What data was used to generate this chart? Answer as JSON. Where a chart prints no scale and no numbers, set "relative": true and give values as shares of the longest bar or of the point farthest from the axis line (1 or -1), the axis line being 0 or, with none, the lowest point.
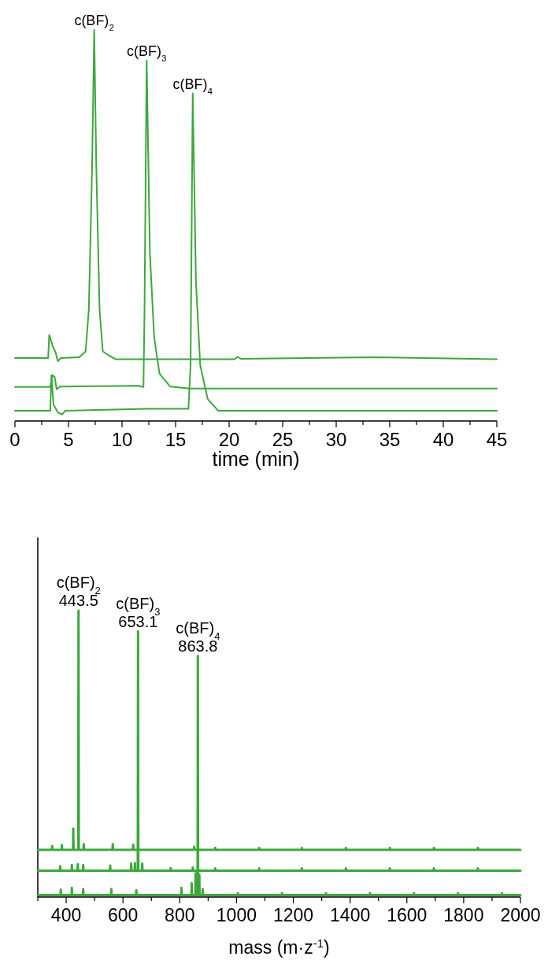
{
  "chart_data": [
    {
      "type": "line",
      "relative": true,
      "xlabel": "time (min)",
      "xlim": [
        0,
        45
      ],
      "xticks": [
        0,
        {
          "value": 2.5,
          "label": null
        },
        5,
        {
          "value": 7.5,
          "label": null
        },
        10,
        {
          "value": 12.5,
          "label": null
        },
        15,
        {
          "value": 17.5,
          "label": null
        },
        20,
        {
          "value": 22.5,
          "label": null
        },
        25,
        {
          "value": 27.5,
          "label": null
        },
        30,
        {
          "value": 32.5,
          "label": null
        },
        35,
        {
          "value": 37.5,
          "label": null
        },
        40,
        {
          "value": 42.5,
          "label": null
        },
        45
      ],
      "tick_labels": "x",
      "grid": false,
      "marker": "none",
      "line_style": "solid",
      "series": [
        {
          "color": "#3ca83c",
          "x": [
            0,
            3.1,
            3.2,
            3.5,
            3.8,
            4.0,
            4.3,
            6.0,
            6.6,
            6.9,
            7.2,
            7.4,
            7.6,
            7.9,
            8.2,
            8.8,
            9.4,
            12,
            20.5,
            20.8,
            21.1,
            33.5,
            45
          ],
          "values": [
            0.161,
            0.161,
            0.22,
            0.193,
            0.175,
            0.153,
            0.161,
            0.163,
            0.178,
            0.286,
            0.645,
            1.0,
            0.645,
            0.286,
            0.178,
            0.167,
            0.158,
            0.158,
            0.158,
            0.164,
            0.159,
            0.163,
            0.158
          ]
        },
        {
          "color": "#3ca83c",
          "x": [
            0,
            3.3,
            3.5,
            3.7,
            3.9,
            4.2,
            11.5,
            12.0,
            12.1,
            12.3,
            12.6,
            13.0,
            13.5,
            14.5,
            16.3,
            17.5,
            45
          ],
          "values": [
            0.087,
            0.087,
            0.117,
            0.113,
            0.081,
            0.088,
            0.09,
            0.087,
            0.286,
            0.922,
            0.43,
            0.214,
            0.121,
            0.088,
            0.083,
            0.083,
            0.083
          ]
        },
        {
          "color": "#3ca83c",
          "x": [
            0,
            3.3,
            3.4,
            3.6,
            4.0,
            4.4,
            4.7,
            12.3,
            15.4,
            16.2,
            16.4,
            16.6,
            16.9,
            17.3,
            18.0,
            19.0,
            45
          ],
          "values": [
            0.026,
            0.026,
            0.117,
            0.042,
            0.022,
            0.017,
            0.026,
            0.031,
            0.031,
            0.031,
            0.143,
            0.838,
            0.358,
            0.143,
            0.056,
            0.026,
            0.026
          ]
        }
      ],
      "annotations": [
        {
          "text": "c(BF)$_{2}$",
          "x": 7.4,
          "y": 1.0
        },
        {
          "text": "c(BF)$_{3}$",
          "x": 12.3,
          "y": 0.922
        },
        {
          "text": "c(BF)$_{4}$",
          "x": 16.6,
          "y": 0.838
        }
      ]
    },
    {
      "type": "line",
      "relative": true,
      "xlabel": "mass (m·z$^{-1}$)",
      "xlim": [
        300,
        2000
      ],
      "xticks": [
        {
          "value": 300,
          "label": null
        },
        400,
        {
          "value": 500,
          "label": null
        },
        600,
        {
          "value": 700,
          "label": null
        },
        800,
        {
          "value": 900,
          "label": null
        },
        1000,
        {
          "value": 1100,
          "label": null
        },
        1200,
        {
          "value": 1300,
          "label": null
        },
        1400,
        {
          "value": 1500,
          "label": null
        },
        1600,
        {
          "value": 1700,
          "label": null
        },
        1800,
        {
          "value": 1900,
          "label": null
        },
        2000
      ],
      "tick_labels": "x",
      "grid": false,
      "marker": "none",
      "line_style": "solid",
      "series": [
        {
          "color": "#3ca83c",
          "x": [
            300,
            350,
            351,
            352,
            384,
            385,
            386,
            424,
            425,
            426,
            442.5,
            443.5,
            444.5,
            461,
            462,
            463,
            563,
            564,
            565,
            635,
            636,
            637,
            850,
            851,
            852,
            924,
            925,
            926,
            1079,
            1080,
            1081,
            1229,
            1230,
            1231,
            1384,
            1385,
            1386,
            1539,
            1540,
            1541,
            1694,
            1695,
            1696,
            1849,
            1850,
            1851,
            2000
          ],
          "values": [
            0.165,
            0.165,
            0.178,
            0.165,
            0.165,
            0.182,
            0.165,
            0.165,
            0.239,
            0.165,
            0.165,
            1.0,
            0.165,
            0.165,
            0.185,
            0.165,
            0.165,
            0.185,
            0.165,
            0.165,
            0.183,
            0.165,
            0.165,
            0.176,
            0.165,
            0.165,
            0.172,
            0.165,
            0.165,
            0.172,
            0.165,
            0.165,
            0.172,
            0.165,
            0.165,
            0.172,
            0.165,
            0.165,
            0.172,
            0.165,
            0.165,
            0.172,
            0.165,
            0.165,
            0.172,
            0.165,
            0.165
          ]
        },
        {
          "color": "#3ca83c",
          "x": [
            300,
            378,
            379,
            380,
            419,
            420,
            421,
            440,
            441,
            442,
            459,
            460,
            461,
            554,
            555,
            556,
            628,
            629,
            630,
            641,
            642,
            643,
            652.1,
            653.1,
            654.1,
            667,
            668,
            669,
            767,
            768,
            769,
            845,
            846,
            847,
            924,
            925,
            926,
            1079,
            1080,
            1081,
            1229,
            1230,
            1231,
            1384,
            1385,
            1386,
            1539,
            1540,
            1541,
            1694,
            1695,
            1696,
            1849,
            1850,
            1851,
            2000
          ],
          "values": [
            0.092,
            0.092,
            0.108,
            0.092,
            0.092,
            0.112,
            0.092,
            0.092,
            0.115,
            0.092,
            0.092,
            0.112,
            0.092,
            0.092,
            0.11,
            0.092,
            0.092,
            0.117,
            0.092,
            0.092,
            0.119,
            0.092,
            0.092,
            0.927,
            0.092,
            0.092,
            0.117,
            0.092,
            0.092,
            0.101,
            0.092,
            0.092,
            0.103,
            0.092,
            0.092,
            0.1,
            0.092,
            0.092,
            0.1,
            0.092,
            0.092,
            0.1,
            0.092,
            0.092,
            0.1,
            0.092,
            0.092,
            0.1,
            0.092,
            0.092,
            0.1,
            0.092,
            0.092,
            0.1,
            0.092,
            0.092
          ]
        },
        {
          "color": "#3ca83c",
          "x": [
            300,
            380,
            381,
            382,
            419,
            420,
            421,
            459,
            460,
            461,
            558,
            559,
            560,
            646,
            647,
            648,
            805,
            806,
            807,
            841,
            842,
            843,
            855,
            856,
            857,
            862.8,
            863.8,
            864.8,
            868,
            869,
            870,
            880,
            881,
            882,
            1004,
            1005,
            1006,
            1159,
            1160,
            1161,
            1314,
            1315,
            1316,
            1469,
            1470,
            1471,
            1624,
            1625,
            1626,
            1779,
            1780,
            1781,
            1934,
            1935,
            1936,
            2000
          ],
          "values": [
            0.007,
            0.007,
            0.026,
            0.007,
            0.007,
            0.032,
            0.007,
            0.007,
            0.028,
            0.007,
            0.007,
            0.028,
            0.007,
            0.007,
            0.024,
            0.007,
            0.007,
            0.032,
            0.007,
            0.007,
            0.048,
            0.007,
            0.007,
            0.083,
            0.007,
            0.007,
            0.842,
            0.007,
            0.007,
            0.078,
            0.007,
            0.007,
            0.028,
            0.007,
            0.007,
            0.014,
            0.007,
            0.007,
            0.014,
            0.007,
            0.007,
            0.014,
            0.007,
            0.007,
            0.014,
            0.007,
            0.007,
            0.014,
            0.007,
            0.007,
            0.014,
            0.007,
            0.007,
            0.014,
            0.007,
            0.007
          ]
        }
      ],
      "annotations": [
        {
          "text": "c(BF)$_{2}$",
          "x": 443.5,
          "y": 1.0
        },
        {
          "text": "443.5",
          "x": 443.5,
          "y": 1.0
        },
        {
          "text": "c(BF)$_{3}$",
          "x": 653.1,
          "y": 0.927
        },
        {
          "text": "653.1",
          "x": 653.1,
          "y": 0.927
        },
        {
          "text": "c(BF)$_{4}$",
          "x": 863.8,
          "y": 0.842
        },
        {
          "text": "863.8",
          "x": 863.8,
          "y": 0.842
        }
      ]
    }
  ]
}
